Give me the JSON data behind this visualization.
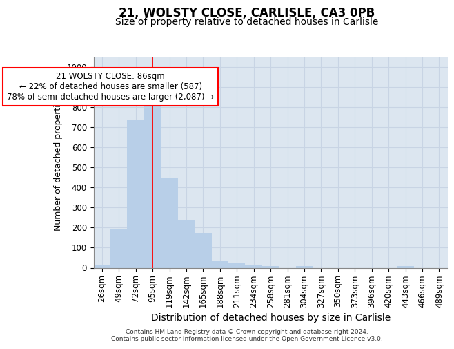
{
  "title_line1": "21, WOLSTY CLOSE, CARLISLE, CA3 0PB",
  "title_line2": "Size of property relative to detached houses in Carlisle",
  "xlabel": "Distribution of detached houses by size in Carlisle",
  "ylabel": "Number of detached properties",
  "footer_line1": "Contains HM Land Registry data © Crown copyright and database right 2024.",
  "footer_line2": "Contains public sector information licensed under the Open Government Licence v3.0.",
  "bin_labels": [
    "26sqm",
    "49sqm",
    "72sqm",
    "95sqm",
    "119sqm",
    "142sqm",
    "165sqm",
    "188sqm",
    "211sqm",
    "234sqm",
    "258sqm",
    "281sqm",
    "304sqm",
    "327sqm",
    "350sqm",
    "373sqm",
    "396sqm",
    "420sqm",
    "443sqm",
    "466sqm",
    "489sqm"
  ],
  "bar_values": [
    15,
    195,
    735,
    835,
    450,
    240,
    175,
    35,
    25,
    15,
    10,
    0,
    10,
    0,
    0,
    0,
    0,
    0,
    10,
    0,
    0
  ],
  "bar_color": "#b8cfe8",
  "bar_edge_color": "none",
  "grid_color": "#c8d4e4",
  "background_color": "#dce6f0",
  "red_line_x": 3.0,
  "annotation_text": "21 WOLSTY CLOSE: 86sqm\n← 22% of detached houses are smaller (587)\n78% of semi-detached houses are larger (2,087) →",
  "annotation_box_color": "white",
  "annotation_box_edge": "red",
  "ylim": [
    0,
    1050
  ],
  "yticks": [
    0,
    100,
    200,
    300,
    400,
    500,
    600,
    700,
    800,
    900,
    1000
  ],
  "title1_fontsize": 12,
  "title2_fontsize": 10,
  "ylabel_fontsize": 9,
  "xlabel_fontsize": 10,
  "tick_fontsize": 8.5,
  "annot_fontsize": 8.5,
  "footer_fontsize": 6.5
}
